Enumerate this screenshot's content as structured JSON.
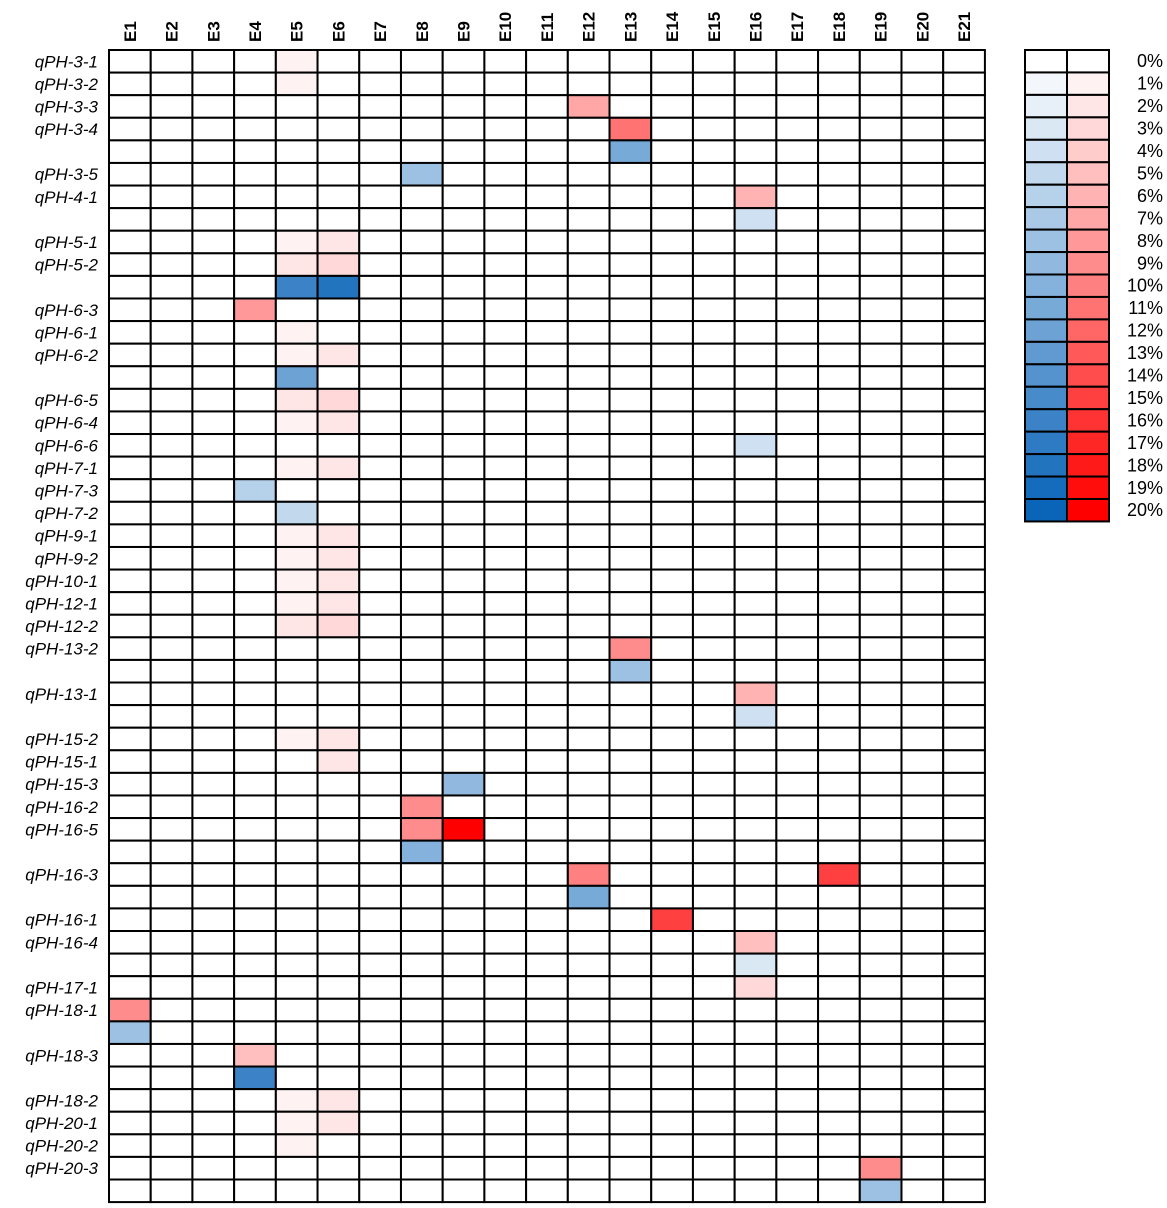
{
  "chart_data": {
    "type": "heatmap",
    "columns": [
      "E1",
      "E2",
      "E3",
      "E4",
      "E5",
      "E6",
      "E7",
      "E8",
      "E9",
      "E10",
      "E11",
      "E12",
      "E13",
      "E14",
      "E15",
      "E16",
      "E17",
      "E18",
      "E19",
      "E20",
      "E21"
    ],
    "rows": [
      "qPH-3-1",
      "qPH-3-2",
      "qPH-3-3",
      "qPH-3-4",
      "",
      "qPH-3-5",
      "qPH-4-1",
      "",
      "qPH-5-1",
      "qPH-5-2",
      "",
      "qPH-6-3",
      "qPH-6-1",
      "qPH-6-2",
      "",
      "qPH-6-5",
      "qPH-6-4",
      "qPH-6-6",
      "qPH-7-1",
      "qPH-7-3",
      "qPH-7-2",
      "qPH-9-1",
      "qPH-9-2",
      "qPH-10-1",
      "qPH-12-1",
      "qPH-12-2",
      "qPH-13-2",
      "",
      "qPH-13-1",
      "",
      "qPH-15-2",
      "qPH-15-1",
      "qPH-15-3",
      "qPH-16-2",
      "qPH-16-5",
      "",
      "qPH-16-3",
      "",
      "qPH-16-1",
      "qPH-16-4",
      "",
      "qPH-17-1",
      "qPH-18-1",
      "",
      "qPH-18-3",
      "",
      "qPH-18-2",
      "qPH-20-1",
      "qPH-20-2",
      "qPH-20-3",
      ""
    ],
    "cells": [
      {
        "row": 0,
        "col": 4,
        "sign": "pos",
        "value": 1
      },
      {
        "row": 1,
        "col": 4,
        "sign": "pos",
        "value": 1
      },
      {
        "row": 2,
        "col": 11,
        "sign": "pos",
        "value": 7
      },
      {
        "row": 3,
        "col": 12,
        "sign": "pos",
        "value": 11
      },
      {
        "row": 4,
        "col": 12,
        "sign": "neg",
        "value": 11
      },
      {
        "row": 5,
        "col": 7,
        "sign": "neg",
        "value": 8
      },
      {
        "row": 6,
        "col": 15,
        "sign": "pos",
        "value": 6
      },
      {
        "row": 7,
        "col": 15,
        "sign": "neg",
        "value": 4
      },
      {
        "row": 8,
        "col": 4,
        "sign": "pos",
        "value": 1
      },
      {
        "row": 8,
        "col": 5,
        "sign": "pos",
        "value": 2
      },
      {
        "row": 9,
        "col": 4,
        "sign": "pos",
        "value": 2
      },
      {
        "row": 9,
        "col": 5,
        "sign": "pos",
        "value": 3
      },
      {
        "row": 10,
        "col": 4,
        "sign": "neg",
        "value": 16
      },
      {
        "row": 10,
        "col": 5,
        "sign": "neg",
        "value": 18
      },
      {
        "row": 11,
        "col": 3,
        "sign": "pos",
        "value": 8
      },
      {
        "row": 12,
        "col": 4,
        "sign": "pos",
        "value": 1
      },
      {
        "row": 13,
        "col": 4,
        "sign": "pos",
        "value": 1
      },
      {
        "row": 13,
        "col": 5,
        "sign": "pos",
        "value": 2
      },
      {
        "row": 14,
        "col": 4,
        "sign": "neg",
        "value": 12
      },
      {
        "row": 15,
        "col": 4,
        "sign": "pos",
        "value": 2
      },
      {
        "row": 15,
        "col": 5,
        "sign": "pos",
        "value": 3
      },
      {
        "row": 16,
        "col": 4,
        "sign": "pos",
        "value": 1
      },
      {
        "row": 16,
        "col": 5,
        "sign": "pos",
        "value": 2
      },
      {
        "row": 17,
        "col": 15,
        "sign": "neg",
        "value": 4
      },
      {
        "row": 18,
        "col": 4,
        "sign": "pos",
        "value": 1
      },
      {
        "row": 18,
        "col": 5,
        "sign": "pos",
        "value": 2
      },
      {
        "row": 19,
        "col": 3,
        "sign": "neg",
        "value": 6
      },
      {
        "row": 20,
        "col": 4,
        "sign": "neg",
        "value": 5
      },
      {
        "row": 21,
        "col": 4,
        "sign": "pos",
        "value": 1
      },
      {
        "row": 21,
        "col": 5,
        "sign": "pos",
        "value": 2
      },
      {
        "row": 22,
        "col": 4,
        "sign": "pos",
        "value": 1
      },
      {
        "row": 22,
        "col": 5,
        "sign": "pos",
        "value": 2
      },
      {
        "row": 23,
        "col": 4,
        "sign": "pos",
        "value": 1
      },
      {
        "row": 23,
        "col": 5,
        "sign": "pos",
        "value": 2
      },
      {
        "row": 24,
        "col": 4,
        "sign": "pos",
        "value": 1
      },
      {
        "row": 24,
        "col": 5,
        "sign": "pos",
        "value": 2
      },
      {
        "row": 25,
        "col": 4,
        "sign": "pos",
        "value": 2
      },
      {
        "row": 25,
        "col": 5,
        "sign": "pos",
        "value": 3
      },
      {
        "row": 26,
        "col": 12,
        "sign": "pos",
        "value": 9
      },
      {
        "row": 27,
        "col": 12,
        "sign": "neg",
        "value": 8
      },
      {
        "row": 28,
        "col": 15,
        "sign": "pos",
        "value": 6
      },
      {
        "row": 29,
        "col": 15,
        "sign": "neg",
        "value": 4
      },
      {
        "row": 30,
        "col": 4,
        "sign": "pos",
        "value": 1
      },
      {
        "row": 30,
        "col": 5,
        "sign": "pos",
        "value": 2
      },
      {
        "row": 31,
        "col": 5,
        "sign": "pos",
        "value": 2
      },
      {
        "row": 32,
        "col": 8,
        "sign": "neg",
        "value": 9
      },
      {
        "row": 33,
        "col": 7,
        "sign": "pos",
        "value": 9
      },
      {
        "row": 34,
        "col": 7,
        "sign": "pos",
        "value": 9
      },
      {
        "row": 34,
        "col": 8,
        "sign": "pos",
        "value": 20
      },
      {
        "row": 35,
        "col": 7,
        "sign": "neg",
        "value": 10
      },
      {
        "row": 36,
        "col": 11,
        "sign": "pos",
        "value": 10
      },
      {
        "row": 36,
        "col": 17,
        "sign": "pos",
        "value": 15
      },
      {
        "row": 37,
        "col": 11,
        "sign": "neg",
        "value": 11
      },
      {
        "row": 38,
        "col": 13,
        "sign": "pos",
        "value": 15
      },
      {
        "row": 39,
        "col": 15,
        "sign": "pos",
        "value": 5
      },
      {
        "row": 40,
        "col": 15,
        "sign": "neg",
        "value": 3
      },
      {
        "row": 41,
        "col": 15,
        "sign": "pos",
        "value": 3
      },
      {
        "row": 42,
        "col": 0,
        "sign": "pos",
        "value": 9
      },
      {
        "row": 43,
        "col": 0,
        "sign": "neg",
        "value": 8
      },
      {
        "row": 44,
        "col": 3,
        "sign": "pos",
        "value": 5
      },
      {
        "row": 45,
        "col": 3,
        "sign": "neg",
        "value": 16
      },
      {
        "row": 46,
        "col": 4,
        "sign": "pos",
        "value": 1
      },
      {
        "row": 46,
        "col": 5,
        "sign": "pos",
        "value": 2
      },
      {
        "row": 47,
        "col": 4,
        "sign": "pos",
        "value": 1
      },
      {
        "row": 47,
        "col": 5,
        "sign": "pos",
        "value": 2
      },
      {
        "row": 48,
        "col": 4,
        "sign": "pos",
        "value": 1
      },
      {
        "row": 49,
        "col": 18,
        "sign": "pos",
        "value": 9
      },
      {
        "row": 50,
        "col": 18,
        "sign": "neg",
        "value": 8
      }
    ],
    "legend": {
      "labels": [
        "0%",
        "1%",
        "2%",
        "3%",
        "4%",
        "5%",
        "6%",
        "7%",
        "8%",
        "9%",
        "10%",
        "11%",
        "12%",
        "13%",
        "14%",
        "15%",
        "16%",
        "17%",
        "18%",
        "19%",
        "20%"
      ],
      "values": [
        0,
        1,
        2,
        3,
        4,
        5,
        6,
        7,
        8,
        9,
        10,
        11,
        12,
        13,
        14,
        15,
        16,
        17,
        18,
        19,
        20
      ]
    },
    "colors": {
      "neg_max": "#0a64b8",
      "pos_max": "#ff0000",
      "empty": "#ffffff",
      "border": "#000000"
    }
  }
}
